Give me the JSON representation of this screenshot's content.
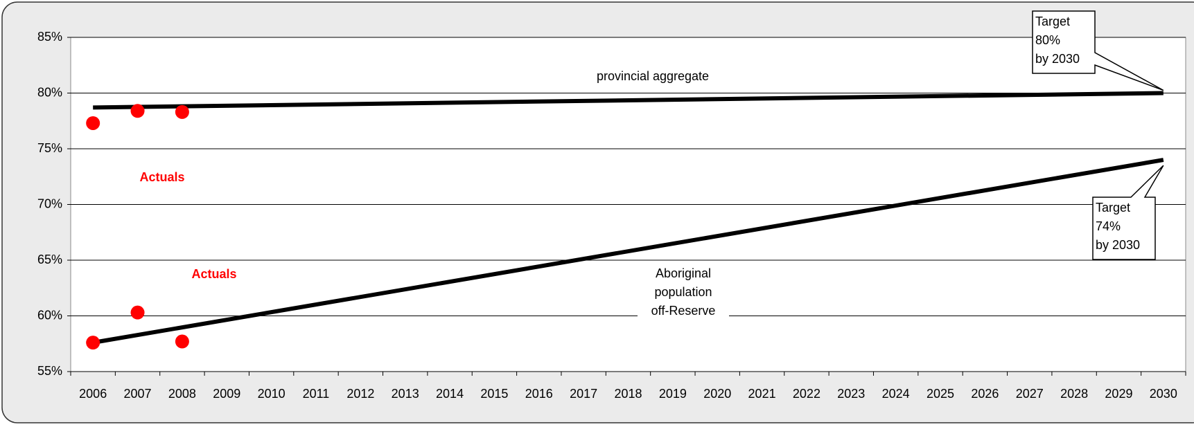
{
  "chart_data": {
    "type": "line",
    "categories": [
      2006,
      2007,
      2008,
      2009,
      2010,
      2011,
      2012,
      2013,
      2014,
      2015,
      2016,
      2017,
      2018,
      2019,
      2020,
      2021,
      2022,
      2023,
      2024,
      2025,
      2026,
      2027,
      2028,
      2029,
      2030
    ],
    "ylim": [
      55,
      85
    ],
    "yticks": [
      {
        "value": 55,
        "label": "55%"
      },
      {
        "value": 60,
        "label": "60%"
      },
      {
        "value": 65,
        "label": "65%"
      },
      {
        "value": 70,
        "label": "70%"
      },
      {
        "value": 75,
        "label": "75%"
      },
      {
        "value": 80,
        "label": "80%"
      },
      {
        "value": 85,
        "label": "85%"
      }
    ],
    "grid": true,
    "series": [
      {
        "style": "line",
        "color": "#000000",
        "x": [
          2006,
          2030
        ],
        "values": [
          78.7,
          80
        ]
      },
      {
        "style": "markers",
        "color": "#ff0000",
        "x": [
          2006,
          2007,
          2008
        ],
        "values": [
          77.3,
          78.4,
          78.3
        ]
      },
      {
        "style": "line",
        "color": "#000000",
        "x": [
          2006,
          2030
        ],
        "values": [
          57.6,
          74
        ]
      },
      {
        "style": "markers",
        "color": "#ff0000",
        "x": [
          2006,
          2007,
          2008
        ],
        "values": [
          57.6,
          60.3,
          57.7
        ]
      }
    ],
    "annotations": {
      "provincial": "provincial aggregate",
      "aboriginal": [
        "Aboriginal",
        "population",
        "off-Reserve"
      ],
      "actuals_provincial": "Actuals",
      "actuals_aboriginal": "Actuals",
      "target_provincial": [
        "Target",
        "80%",
        "by 2030"
      ],
      "target_aboriginal": [
        "Target",
        "74%",
        "by 2030"
      ]
    }
  }
}
